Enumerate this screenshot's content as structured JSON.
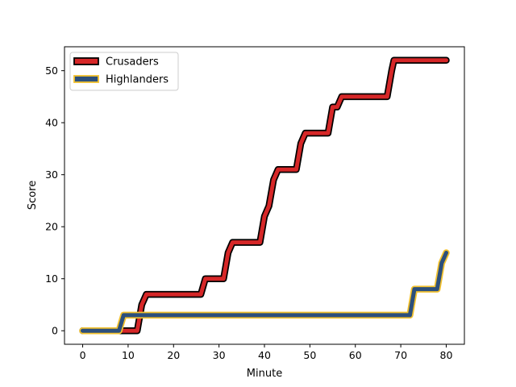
{
  "chart_data": {
    "type": "line",
    "title": "",
    "xlabel": "Minute",
    "ylabel": "Score",
    "xlim": [
      -4,
      84
    ],
    "ylim": [
      -2.6,
      54.6
    ],
    "xticks": [
      0,
      10,
      20,
      30,
      40,
      50,
      60,
      70,
      80
    ],
    "yticks": [
      0,
      10,
      20,
      30,
      40,
      50
    ],
    "grid": false,
    "legend_position": "top-left",
    "series": [
      {
        "name": "Crusaders",
        "color": "#d62728",
        "edge_color": "#000000",
        "points": [
          [
            0,
            0
          ],
          [
            8,
            0
          ],
          [
            9,
            0
          ],
          [
            12,
            0
          ],
          [
            13,
            5
          ],
          [
            14,
            7
          ],
          [
            26,
            7
          ],
          [
            27,
            10
          ],
          [
            31,
            10
          ],
          [
            32,
            15
          ],
          [
            33,
            17
          ],
          [
            39,
            17
          ],
          [
            40,
            22
          ],
          [
            41,
            24
          ],
          [
            42,
            29
          ],
          [
            43,
            31
          ],
          [
            47,
            31
          ],
          [
            48,
            36
          ],
          [
            49,
            38
          ],
          [
            54,
            38
          ],
          [
            55,
            43
          ],
          [
            56,
            43
          ],
          [
            57,
            45
          ],
          [
            67,
            45
          ],
          [
            68,
            50
          ],
          [
            68.5,
            52
          ],
          [
            80,
            52
          ]
        ]
      },
      {
        "name": "Highlanders",
        "color": "#2c4f7c",
        "edge_color": "#f2c12e",
        "points": [
          [
            0,
            0
          ],
          [
            8,
            0
          ],
          [
            9,
            3
          ],
          [
            72,
            3
          ],
          [
            73,
            8
          ],
          [
            78,
            8
          ],
          [
            79,
            13
          ],
          [
            80,
            15
          ]
        ]
      }
    ]
  }
}
